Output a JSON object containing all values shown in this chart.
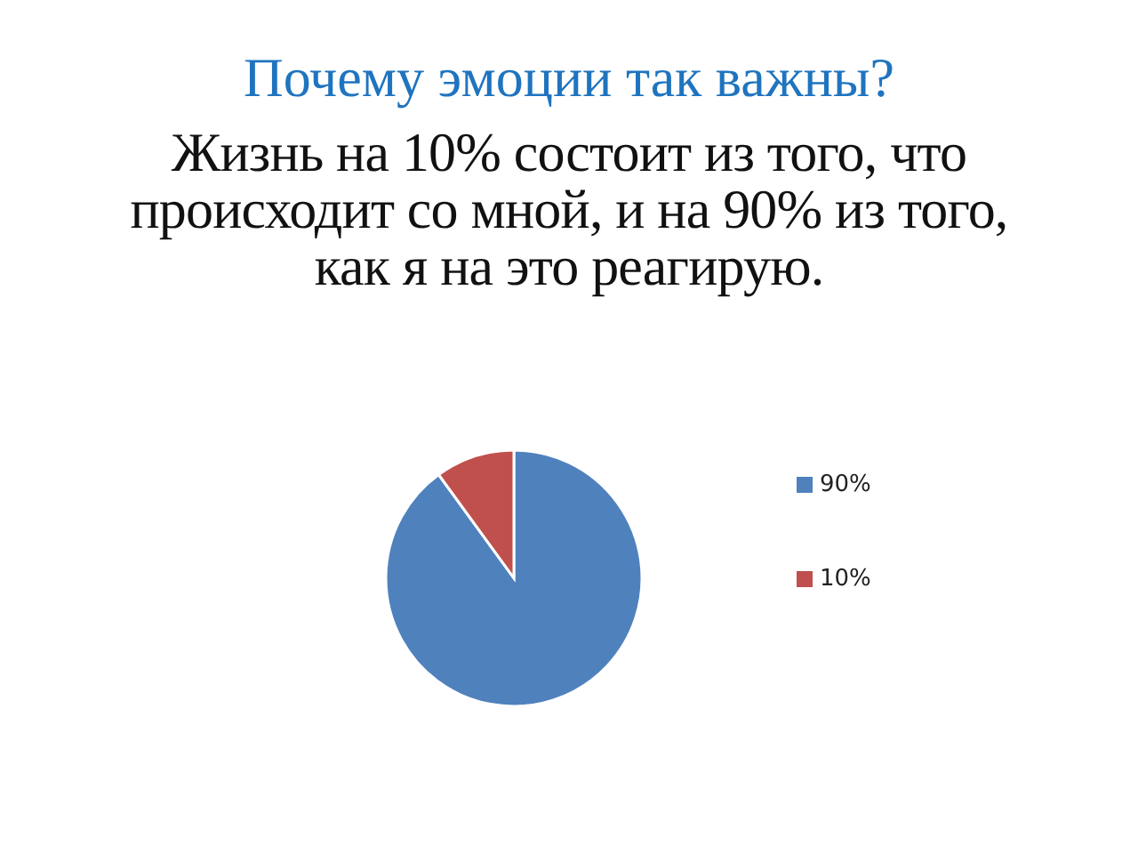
{
  "chart_data": {
    "type": "pie",
    "title": "Почему эмоции так важны?",
    "subtitle": "Жизнь на 10% состоит из того, что происходит со мной, и на 90% из того, как я на это реагирую.",
    "categories": [
      "90%",
      "10%"
    ],
    "values": [
      90,
      10
    ],
    "colors": [
      "#4f81bd",
      "#c0504d"
    ],
    "legend": "right"
  }
}
